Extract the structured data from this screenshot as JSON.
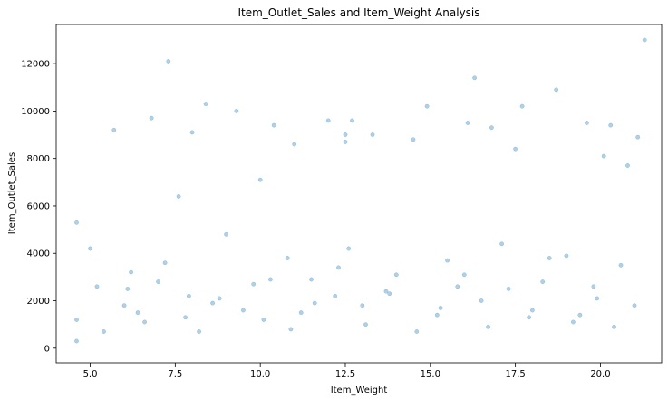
{
  "chart_data": {
    "type": "scatter",
    "title": "Item_Outlet_Sales and Item_Weight Analysis",
    "xlabel": "Item_Weight",
    "ylabel": "Item_Outlet_Sales",
    "xlim": [
      4.0,
      21.8
    ],
    "ylim": [
      -620,
      13650
    ],
    "xticks": [
      "5.0",
      "7.5",
      "10.0",
      "12.5",
      "15.0",
      "17.5",
      "20.0"
    ],
    "xtick_values": [
      5.0,
      7.5,
      10.0,
      12.5,
      15.0,
      17.5,
      20.0
    ],
    "yticks": [
      "0",
      "2000",
      "4000",
      "6000",
      "8000",
      "10000",
      "12000"
    ],
    "ytick_values": [
      0,
      2000,
      4000,
      6000,
      8000,
      10000,
      12000
    ],
    "grid": false,
    "point_color": "#1f77b4",
    "point_alpha": 0.35,
    "series": [
      {
        "x": [
          4.6,
          4.6,
          4.6,
          5.0,
          5.2,
          5.7,
          6.0,
          6.2,
          6.4,
          6.8,
          7.3,
          7.0,
          7.6,
          7.9,
          8.0,
          8.4,
          8.6,
          9.0,
          9.3,
          9.8,
          10.0,
          10.1,
          10.4,
          10.8,
          11.0,
          11.2,
          11.5,
          12.0,
          12.2,
          12.5,
          12.5,
          12.6,
          12.7,
          13.0,
          13.3,
          13.7,
          14.0,
          14.5,
          14.9,
          15.2,
          15.5,
          15.8,
          16.1,
          16.3,
          16.5,
          16.8,
          17.1,
          17.5,
          17.7,
          18.0,
          18.3,
          18.7,
          19.0,
          19.4,
          19.6,
          19.9,
          20.1,
          20.3,
          20.6,
          20.8,
          21.1,
          21.3,
          5.4,
          6.1,
          6.6,
          7.2,
          7.8,
          8.2,
          8.8,
          9.5,
          10.3,
          10.9,
          11.6,
          12.3,
          13.1,
          13.8,
          14.6,
          15.3,
          16.0,
          16.7,
          17.3,
          17.9,
          18.5,
          19.2,
          19.8,
          20.4,
          21.0
        ],
        "y": [
          300,
          1200,
          5300,
          4200,
          2600,
          9200,
          1800,
          3200,
          1500,
          9700,
          12100,
          2800,
          6400,
          2200,
          9100,
          10300,
          1900,
          4800,
          10000,
          2700,
          7100,
          1200,
          9400,
          3800,
          8600,
          1500,
          2900,
          9600,
          2200,
          9000,
          8700,
          4200,
          9600,
          1800,
          9000,
          2400,
          3100,
          8800,
          10200,
          1400,
          3700,
          2600,
          9500,
          11400,
          2000,
          9300,
          4400,
          8400,
          10200,
          1600,
          2800,
          10900,
          3900,
          1400,
          9500,
          2100,
          8100,
          9400,
          3500,
          7700,
          8900,
          13000,
          700,
          2500,
          1100,
          3600,
          1300,
          700,
          2100,
          1600,
          2900,
          800,
          1900,
          3400,
          1000,
          2300,
          700,
          1700,
          3100,
          900,
          2500,
          1300,
          3800,
          1100,
          2600,
          900,
          1800
        ]
      }
    ]
  }
}
